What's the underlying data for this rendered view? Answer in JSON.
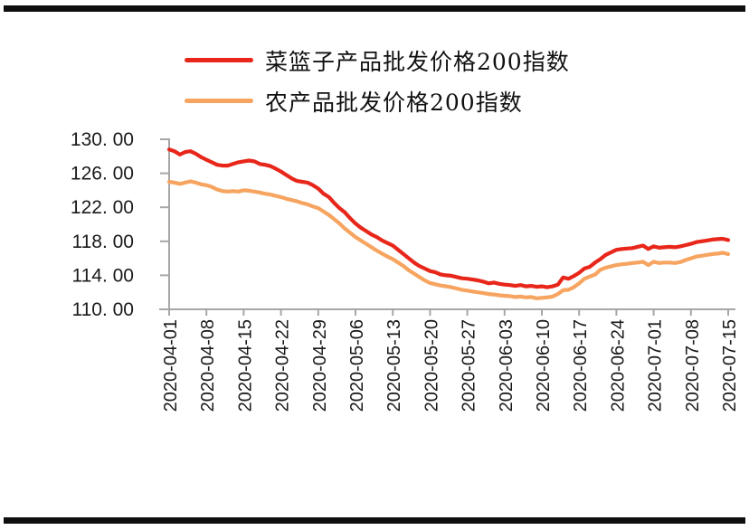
{
  "page": {
    "divider_bar_color": "#0e0e0e",
    "background": "#ffffff"
  },
  "legend": {
    "items": [
      {
        "label": "菜篮子产品批发价格200指数",
        "color": "#e8261a"
      },
      {
        "label": "农产品批发价格200指数",
        "color": "#f6a45f"
      }
    ]
  },
  "chart_data": {
    "type": "line",
    "title": "",
    "xlabel": "",
    "ylabel": "",
    "grid": false,
    "legend_position": "top-left",
    "axis_color": "#a6a6a6",
    "tick_label_color": "#1a1a1a",
    "ylim": [
      110,
      130
    ],
    "y_tick_values": [
      130,
      126,
      122,
      118,
      114,
      110
    ],
    "y_tick_labels": [
      "130. 00",
      "126. 00",
      "122. 00",
      "118. 00",
      "114. 00",
      "110. 00"
    ],
    "x_tick_labels": [
      "2020-04-01",
      "2020-04-08",
      "2020-04-15",
      "2020-04-22",
      "2020-04-29",
      "2020-05-06",
      "2020-05-13",
      "2020-05-20",
      "2020-05-27",
      "2020-06-03",
      "2020-06-10",
      "2020-06-17",
      "2020-06-24",
      "2020-07-01",
      "2020-07-08",
      "2020-07-15"
    ],
    "x_resolution": "daily, one point per day from 2020-04-01 to 2020-07-15",
    "series": [
      {
        "name": "菜篮子产品批发价格200指数",
        "color": "#e8261a",
        "values": [
          128.8,
          128.6,
          128.2,
          128.5,
          128.6,
          128.3,
          127.9,
          127.6,
          127.3,
          127.0,
          126.9,
          126.9,
          127.1,
          127.3,
          127.4,
          127.5,
          127.4,
          127.1,
          127.0,
          126.85,
          126.55,
          126.2,
          125.8,
          125.4,
          125.1,
          125.0,
          124.9,
          124.6,
          124.2,
          123.6,
          123.2,
          122.5,
          121.9,
          121.4,
          120.7,
          120.1,
          119.6,
          119.2,
          118.8,
          118.5,
          118.1,
          117.8,
          117.5,
          117.0,
          116.5,
          116.0,
          115.5,
          115.1,
          114.8,
          114.5,
          114.35,
          114.1,
          114.0,
          113.95,
          113.8,
          113.65,
          113.6,
          113.5,
          113.4,
          113.25,
          113.05,
          113.15,
          113.0,
          112.9,
          112.85,
          112.75,
          112.85,
          112.7,
          112.75,
          112.65,
          112.7,
          112.6,
          112.7,
          112.9,
          113.75,
          113.6,
          113.9,
          114.3,
          114.8,
          115.0,
          115.5,
          115.9,
          116.4,
          116.7,
          117.0,
          117.1,
          117.15,
          117.2,
          117.35,
          117.5,
          117.1,
          117.4,
          117.25,
          117.3,
          117.35,
          117.3,
          117.4,
          117.55,
          117.7,
          117.9,
          118.0,
          118.1,
          118.2,
          118.25,
          118.3,
          118.15
        ]
      },
      {
        "name": "农产品批发价格200指数",
        "color": "#f6a45f",
        "values": [
          125.0,
          124.9,
          124.75,
          124.9,
          125.05,
          124.9,
          124.7,
          124.6,
          124.4,
          124.1,
          123.9,
          123.85,
          123.9,
          123.85,
          124.0,
          123.95,
          123.85,
          123.75,
          123.6,
          123.5,
          123.35,
          123.2,
          123.0,
          122.85,
          122.7,
          122.5,
          122.35,
          122.1,
          121.9,
          121.5,
          121.1,
          120.6,
          120.1,
          119.5,
          119.0,
          118.5,
          118.1,
          117.7,
          117.3,
          116.9,
          116.55,
          116.2,
          115.9,
          115.5,
          115.1,
          114.6,
          114.2,
          113.8,
          113.4,
          113.1,
          112.95,
          112.8,
          112.7,
          112.6,
          112.45,
          112.3,
          112.2,
          112.1,
          112.0,
          111.9,
          111.8,
          111.75,
          111.65,
          111.6,
          111.55,
          111.45,
          111.5,
          111.4,
          111.45,
          111.3,
          111.35,
          111.4,
          111.5,
          111.8,
          112.25,
          112.3,
          112.6,
          113.05,
          113.6,
          113.85,
          114.1,
          114.65,
          114.9,
          115.05,
          115.2,
          115.3,
          115.35,
          115.45,
          115.5,
          115.6,
          115.2,
          115.6,
          115.45,
          115.5,
          115.5,
          115.45,
          115.55,
          115.8,
          116.0,
          116.2,
          116.3,
          116.4,
          116.5,
          116.55,
          116.65,
          116.5
        ]
      }
    ]
  }
}
